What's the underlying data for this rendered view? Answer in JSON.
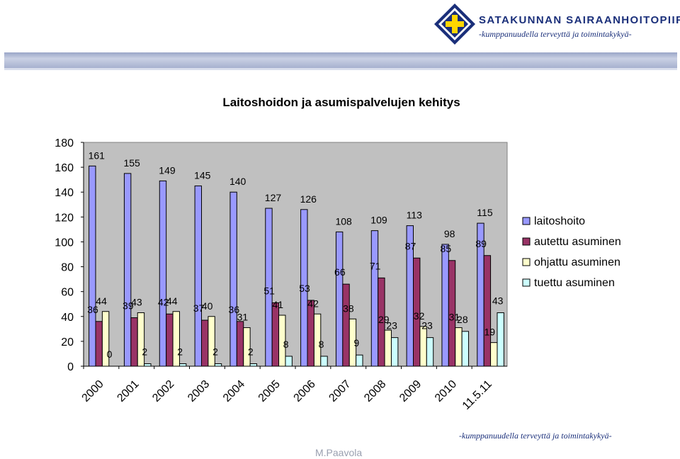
{
  "header": {
    "org_name": "SATAKUNNAN SAIRAANHOITOPIIRI",
    "org_motto": "-kumppanuudella terveyttä ja toimintakykyä-"
  },
  "footer": {
    "motto": "-kumppanuudella terveyttä ja toimintakykyä-",
    "author": "M.Paavola"
  },
  "colors": {
    "brand": "#1a2f7a",
    "plot_area": "#c0c0c0"
  },
  "chart_data": {
    "type": "bar",
    "title": "Laitoshoidon ja asumispalvelujen kehitys",
    "xlabel": "",
    "ylabel": "",
    "ylim": [
      0,
      180
    ],
    "yticks": [
      0,
      20,
      40,
      60,
      80,
      100,
      120,
      140,
      160,
      180
    ],
    "grid": false,
    "legend_position": "right",
    "categories": [
      "2000",
      "2001",
      "2002",
      "2003",
      "2004",
      "2005",
      "2006",
      "2007",
      "2008",
      "2009",
      "2010",
      "11.5.11"
    ],
    "series": [
      {
        "name": "laitoshoito",
        "color": "#9999ff",
        "values": [
          161,
          155,
          149,
          145,
          140,
          127,
          126,
          108,
          109,
          113,
          98,
          115
        ]
      },
      {
        "name": "autettu asuminen",
        "color": "#993366",
        "values": [
          36,
          39,
          42,
          37,
          36,
          51,
          53,
          66,
          71,
          87,
          85,
          89
        ]
      },
      {
        "name": "ohjattu asuminen",
        "color": "#ffffcc",
        "values": [
          44,
          43,
          44,
          40,
          31,
          41,
          42,
          38,
          29,
          32,
          31,
          19
        ]
      },
      {
        "name": "tuettu asuminen",
        "color": "#ccffff",
        "values": [
          0,
          2,
          2,
          2,
          2,
          8,
          8,
          9,
          23,
          23,
          28,
          43
        ]
      }
    ]
  }
}
